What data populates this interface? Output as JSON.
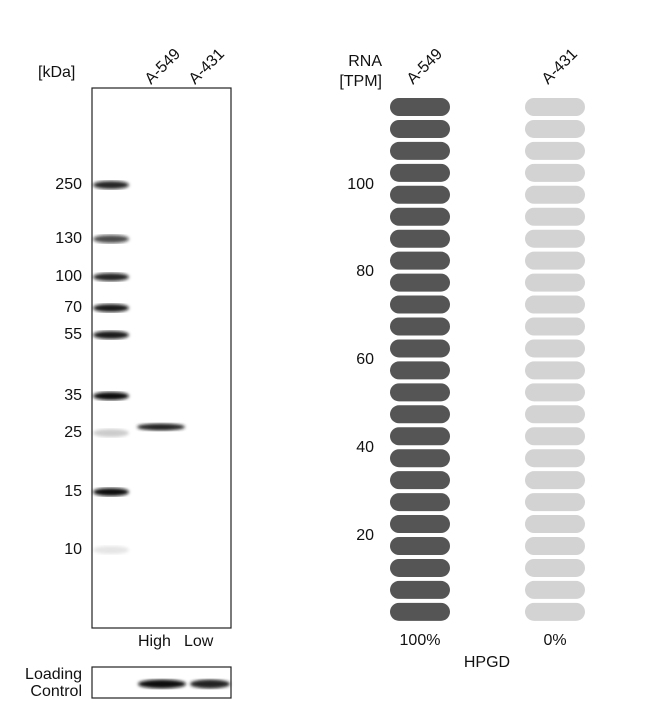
{
  "blot": {
    "unit_label": "[kDa]",
    "lanes": [
      "A-549",
      "A-431"
    ],
    "markers": [
      "250",
      "130",
      "100",
      "70",
      "55",
      "35",
      "25",
      "15",
      "10"
    ],
    "levels": [
      "High",
      "Low"
    ],
    "loading_control": [
      "Loading",
      "Control"
    ]
  },
  "rna": {
    "axis_label": [
      "RNA",
      "[TPM]"
    ],
    "ticks": [
      "100",
      "80",
      "60",
      "40",
      "20"
    ],
    "columns": [
      {
        "name": "A-549",
        "percent": "100%",
        "color": "#555555"
      },
      {
        "name": "A-431",
        "percent": "0%",
        "color": "#d3d3d3"
      }
    ],
    "gene": "HPGD"
  }
}
